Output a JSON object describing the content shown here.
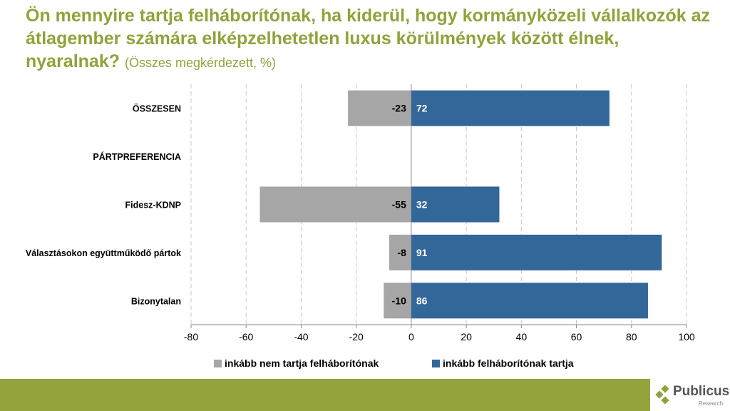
{
  "title": {
    "main": "Ön mennyire tartja felháborítónak, ha kiderül, hogy kormányközeli vállalkozók az átlagember számára elképzelhetetlen luxus körülmények között élnek, nyaralnak?",
    "sub": "(Összes megkérdezett, %)"
  },
  "logo": {
    "name": "Publicus",
    "sub": "Research"
  },
  "chart_data": {
    "type": "bar",
    "orientation": "horizontal",
    "stacked": "diverging",
    "categories": [
      "ÖSSZESEN",
      "PÁRTPREFERENCIA",
      "Fidesz-KDNP",
      "Választásokon együttműködő pártok",
      "Bizonytalan"
    ],
    "series": [
      {
        "name": "inkább nem tartja felháborítónak",
        "color": "#a6a6a6",
        "values": [
          -23,
          null,
          -55,
          -8,
          -10
        ]
      },
      {
        "name": "inkább felháborítónak tartja",
        "color": "#336699",
        "values": [
          72,
          null,
          32,
          91,
          86
        ]
      }
    ],
    "xlim": [
      -80,
      100
    ],
    "xticks": [
      -80,
      -60,
      -40,
      -20,
      0,
      20,
      40,
      60,
      80,
      100
    ],
    "grid": true,
    "legend": "bottom"
  }
}
